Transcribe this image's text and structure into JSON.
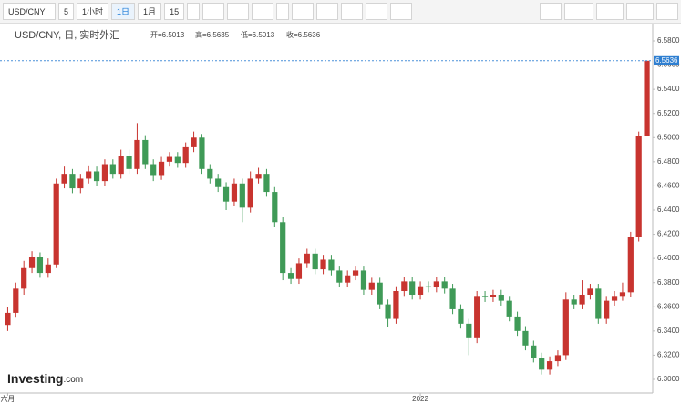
{
  "toolbar": {
    "symbol": "USD/CNY",
    "intervals": [
      "5",
      "1小时",
      "1日",
      "1月",
      "15"
    ]
  },
  "chart_data": {
    "type": "candlestick",
    "title": "USD/CNY, 日, 实时外汇",
    "legend_text": [
      "开=6.5013",
      "高=6.5635",
      "低=6.5013",
      "收=6.5636"
    ],
    "logo": {
      "brand": "Investing",
      "suffix": ".com"
    },
    "up_color": "#c8342f",
    "down_color": "#3f9a57",
    "categories": [
      "六月",
      null,
      null,
      null,
      null,
      null,
      null,
      null,
      null,
      null,
      null,
      null,
      null,
      null,
      null,
      null,
      null,
      null,
      null,
      null,
      null,
      null,
      null,
      null,
      null,
      null,
      null,
      null,
      null,
      null,
      null,
      null,
      null,
      null,
      null,
      null,
      null,
      null,
      null,
      null,
      null,
      null,
      null,
      null,
      null,
      null,
      null,
      null,
      null,
      null,
      null,
      "2022",
      null,
      null,
      null,
      null,
      null,
      null,
      null,
      null,
      null,
      null,
      null,
      null,
      null,
      null,
      null,
      null,
      null,
      null,
      null,
      null,
      null,
      null,
      null,
      null,
      null,
      null,
      null,
      null
    ],
    "open": [
      6.345,
      6.355,
      6.375,
      6.392,
      6.401,
      6.388,
      6.395,
      6.462,
      6.47,
      6.458,
      6.466,
      6.472,
      6.464,
      6.478,
      6.47,
      6.485,
      6.474,
      6.498,
      6.478,
      6.469,
      6.48,
      6.484,
      6.479,
      6.492,
      6.5,
      6.474,
      6.466,
      6.459,
      6.447,
      6.462,
      6.442,
      6.466,
      6.47,
      6.455,
      6.43,
      6.388,
      6.383,
      6.396,
      6.404,
      6.391,
      6.399,
      6.39,
      6.38,
      6.386,
      6.39,
      6.374,
      6.38,
      6.362,
      6.35,
      6.373,
      6.381,
      6.37,
      6.377,
      6.376,
      6.381,
      6.375,
      6.358,
      6.346,
      6.334,
      6.369,
      6.368,
      6.37,
      6.365,
      6.352,
      6.34,
      6.328,
      6.318,
      6.308,
      6.315,
      6.32,
      6.366,
      6.362,
      6.37,
      6.375,
      6.35,
      6.365,
      6.369,
      6.372,
      6.418,
      6.5013
    ],
    "high": [
      6.36,
      6.38,
      6.398,
      6.406,
      6.405,
      6.4,
      6.466,
      6.476,
      6.474,
      6.47,
      6.477,
      6.476,
      6.482,
      6.482,
      6.49,
      6.49,
      6.512,
      6.502,
      6.482,
      6.484,
      6.488,
      6.488,
      6.496,
      6.505,
      6.503,
      6.478,
      6.47,
      6.463,
      6.466,
      6.466,
      6.472,
      6.475,
      6.474,
      6.459,
      6.434,
      6.392,
      6.4,
      6.408,
      6.408,
      6.403,
      6.403,
      6.394,
      6.39,
      6.394,
      6.394,
      6.384,
      6.384,
      6.366,
      6.377,
      6.385,
      6.385,
      6.381,
      6.381,
      6.385,
      6.385,
      6.379,
      6.362,
      6.35,
      6.373,
      6.373,
      6.374,
      6.374,
      6.369,
      6.356,
      6.344,
      6.332,
      6.322,
      6.319,
      6.324,
      6.372,
      6.37,
      6.382,
      6.379,
      6.379,
      6.369,
      6.373,
      6.38,
      6.422,
      6.505,
      6.5635
    ],
    "low": [
      6.34,
      6.351,
      6.37,
      6.388,
      6.384,
      6.384,
      6.392,
      6.458,
      6.454,
      6.454,
      6.462,
      6.46,
      6.46,
      6.466,
      6.466,
      6.47,
      6.47,
      6.474,
      6.464,
      6.465,
      6.476,
      6.475,
      6.475,
      6.488,
      6.47,
      6.462,
      6.455,
      6.44,
      6.443,
      6.43,
      6.438,
      6.462,
      6.451,
      6.426,
      6.382,
      6.379,
      6.379,
      6.392,
      6.387,
      6.387,
      6.386,
      6.376,
      6.376,
      6.382,
      6.37,
      6.37,
      6.358,
      6.343,
      6.346,
      6.369,
      6.366,
      6.366,
      6.372,
      6.372,
      6.371,
      6.354,
      6.342,
      6.32,
      6.33,
      6.364,
      6.364,
      6.361,
      6.348,
      6.336,
      6.324,
      6.314,
      6.304,
      6.304,
      6.311,
      6.316,
      6.358,
      6.358,
      6.366,
      6.346,
      6.346,
      6.361,
      6.365,
      6.368,
      6.414,
      6.5013
    ],
    "close": [
      6.355,
      6.375,
      6.392,
      6.401,
      6.388,
      6.395,
      6.462,
      6.47,
      6.458,
      6.466,
      6.472,
      6.464,
      6.478,
      6.47,
      6.485,
      6.474,
      6.498,
      6.478,
      6.469,
      6.48,
      6.484,
      6.479,
      6.492,
      6.5,
      6.474,
      6.466,
      6.459,
      6.447,
      6.462,
      6.442,
      6.466,
      6.47,
      6.455,
      6.43,
      6.388,
      6.383,
      6.396,
      6.404,
      6.391,
      6.399,
      6.39,
      6.38,
      6.386,
      6.39,
      6.374,
      6.38,
      6.362,
      6.35,
      6.373,
      6.381,
      6.37,
      6.377,
      6.376,
      6.381,
      6.375,
      6.358,
      6.346,
      6.334,
      6.369,
      6.368,
      6.37,
      6.365,
      6.352,
      6.34,
      6.328,
      6.318,
      6.308,
      6.315,
      6.32,
      6.366,
      6.362,
      6.37,
      6.375,
      6.35,
      6.365,
      6.369,
      6.372,
      6.418,
      6.501,
      6.5636
    ],
    "ylim": [
      6.2887,
      6.5943
    ],
    "yticks": [
      {
        "value": 6.3,
        "label": "6.3000"
      },
      {
        "value": 6.32,
        "label": "6.3200"
      },
      {
        "value": 6.34,
        "label": "6.3400"
      },
      {
        "value": 6.36,
        "label": "6.3600"
      },
      {
        "value": 6.38,
        "label": "6.3800"
      },
      {
        "value": 6.4,
        "label": "6.4000"
      },
      {
        "value": 6.42,
        "label": "6.4200"
      },
      {
        "value": 6.44,
        "label": "6.4400"
      },
      {
        "value": 6.46,
        "label": "6.4600"
      },
      {
        "value": 6.48,
        "label": "6.4800"
      },
      {
        "value": 6.5,
        "label": "6.5000"
      },
      {
        "value": 6.52,
        "label": "6.5200"
      },
      {
        "value": 6.54,
        "label": "6.5400"
      },
      {
        "value": 6.56,
        "label": "6.5600"
      },
      {
        "value": 6.58,
        "label": "6.5800"
      }
    ]
  }
}
